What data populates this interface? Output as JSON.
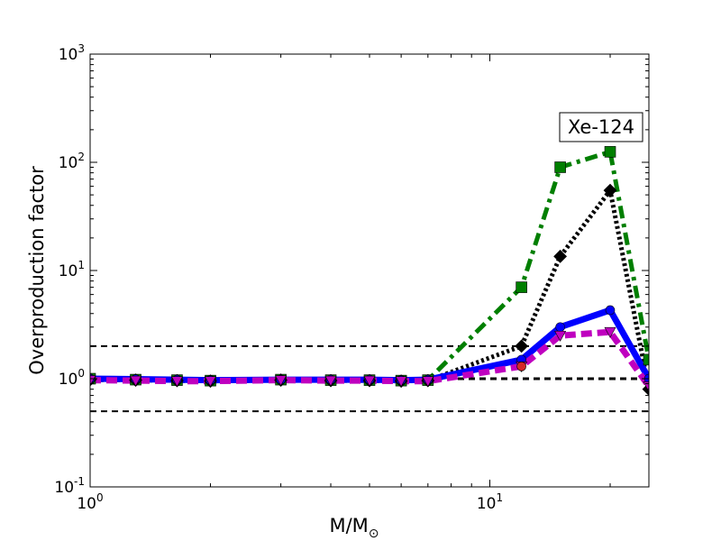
{
  "chart_data": {
    "type": "line",
    "xscale": "log",
    "yscale": "log",
    "xlim": [
      1,
      25
    ],
    "ylim": [
      0.1,
      1000
    ],
    "xlabel": "M/M",
    "xlabel_sub": "⊙",
    "ylabel": "Overproduction factor",
    "x_ticks": [
      {
        "base": "10",
        "exp": "0",
        "value": 1
      },
      {
        "base": "10",
        "exp": "1",
        "value": 10
      }
    ],
    "y_ticks": [
      {
        "base": "10",
        "exp": "-1",
        "value": 0.1
      },
      {
        "base": "10",
        "exp": "0",
        "value": 1
      },
      {
        "base": "10",
        "exp": "1",
        "value": 10
      },
      {
        "base": "10",
        "exp": "2",
        "value": 100
      },
      {
        "base": "10",
        "exp": "3",
        "value": 1000
      }
    ],
    "annotation": "Xe-124",
    "annotation_position": "top-right",
    "reference_lines": [
      0.5,
      1,
      2
    ],
    "series": [
      {
        "color": "#007f00",
        "dash": "dashdot",
        "marker": "square",
        "x": [
          1,
          1.3,
          1.65,
          2,
          3,
          4,
          5,
          6,
          7,
          12,
          15,
          20,
          25
        ],
        "y": [
          1.0,
          0.98,
          0.97,
          0.96,
          0.98,
          0.97,
          0.97,
          0.96,
          0.97,
          7.0,
          90,
          125,
          1.5
        ]
      },
      {
        "color": "#000000",
        "dash": "dotted",
        "marker": "diamond",
        "x": [
          1,
          1.3,
          1.65,
          2,
          3,
          4,
          5,
          6,
          7,
          12,
          15,
          20,
          25
        ],
        "y": [
          0.98,
          0.97,
          0.96,
          0.95,
          0.97,
          0.96,
          0.96,
          0.95,
          0.96,
          2.0,
          13.5,
          55,
          0.8
        ]
      },
      {
        "color": "#0000ff",
        "dash": "solid",
        "marker": "circle",
        "x": [
          1,
          1.3,
          1.65,
          2,
          3,
          4,
          5,
          6,
          7,
          12,
          15,
          20,
          25
        ],
        "y": [
          1.0,
          0.99,
          0.98,
          0.97,
          0.98,
          0.98,
          0.98,
          0.97,
          0.98,
          1.5,
          3.0,
          4.3,
          1.0
        ]
      },
      {
        "color": "#bf00bf",
        "dash": "dashed",
        "marker": "triangle-down",
        "x": [
          1,
          1.3,
          1.65,
          2,
          3,
          4,
          5,
          6,
          7,
          12,
          15,
          20,
          25
        ],
        "y": [
          0.97,
          0.96,
          0.95,
          0.95,
          0.97,
          0.96,
          0.96,
          0.95,
          0.95,
          1.3,
          2.5,
          2.7,
          0.85
        ]
      },
      {
        "color": "#d62728",
        "dash": "none",
        "marker": "circle-small",
        "x": [
          12
        ],
        "y": [
          1.3
        ]
      }
    ]
  }
}
